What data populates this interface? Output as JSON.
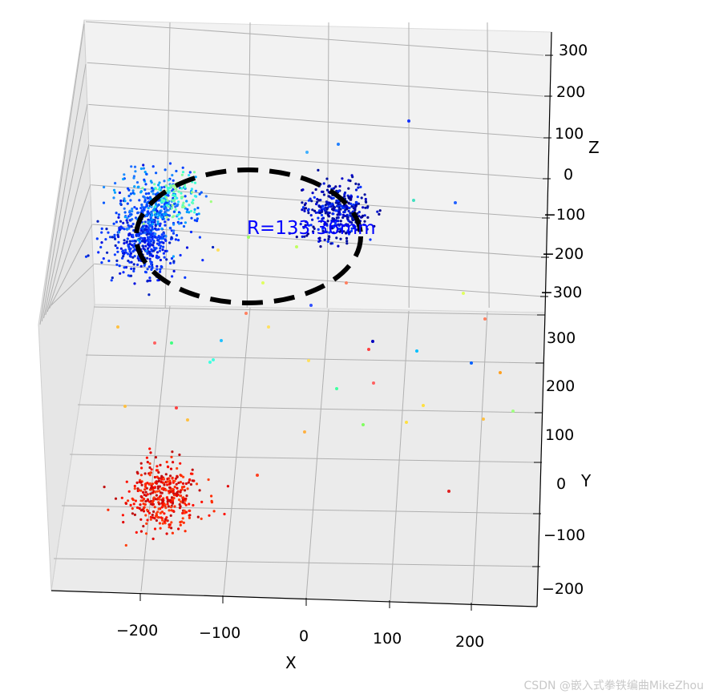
{
  "chart_data": {
    "type": "scatter",
    "projection": "3d",
    "colormap": "jet (colored by Y)",
    "grid": true,
    "xlabel": "X",
    "ylabel": "Y",
    "zlabel": "Z",
    "xticks": [
      "−200",
      "−100",
      "0",
      "100",
      "200"
    ],
    "yticks": [
      "300",
      "200",
      "100",
      "0",
      "−100",
      "−200"
    ],
    "zticks": [
      "300",
      "200",
      "100",
      "0",
      "−100",
      "−200",
      "−300"
    ],
    "xlim": [
      -300,
      300
    ],
    "ylim": [
      -250,
      350
    ],
    "zlim": [
      -350,
      350
    ],
    "clusters": [
      {
        "center_x": -200,
        "center_y": 300,
        "center_z": -70,
        "points": 420,
        "color": "#0a2cff"
      },
      {
        "center_x": -180,
        "center_y": 300,
        "center_z": 10,
        "points": 300,
        "color": "#1c8cff"
      },
      {
        "center_x": -170,
        "center_y": 300,
        "center_z": 40,
        "points": 90,
        "color": "#6effb4"
      },
      {
        "center_x": 50,
        "center_y": 300,
        "center_z": -70,
        "points": 360,
        "color": "#0018d8"
      },
      {
        "center_x": -180,
        "center_y": -100,
        "center_z": -300,
        "points": 380,
        "color": "#ff2a00"
      }
    ],
    "circle": {
      "radius": 133,
      "style": "dashed",
      "color": "#000000"
    },
    "annotation": {
      "text": "R=133.36mm",
      "color": "#0000ff"
    }
  },
  "watermark": "CSDN @嵌入式拳铁编曲MikeZhou"
}
